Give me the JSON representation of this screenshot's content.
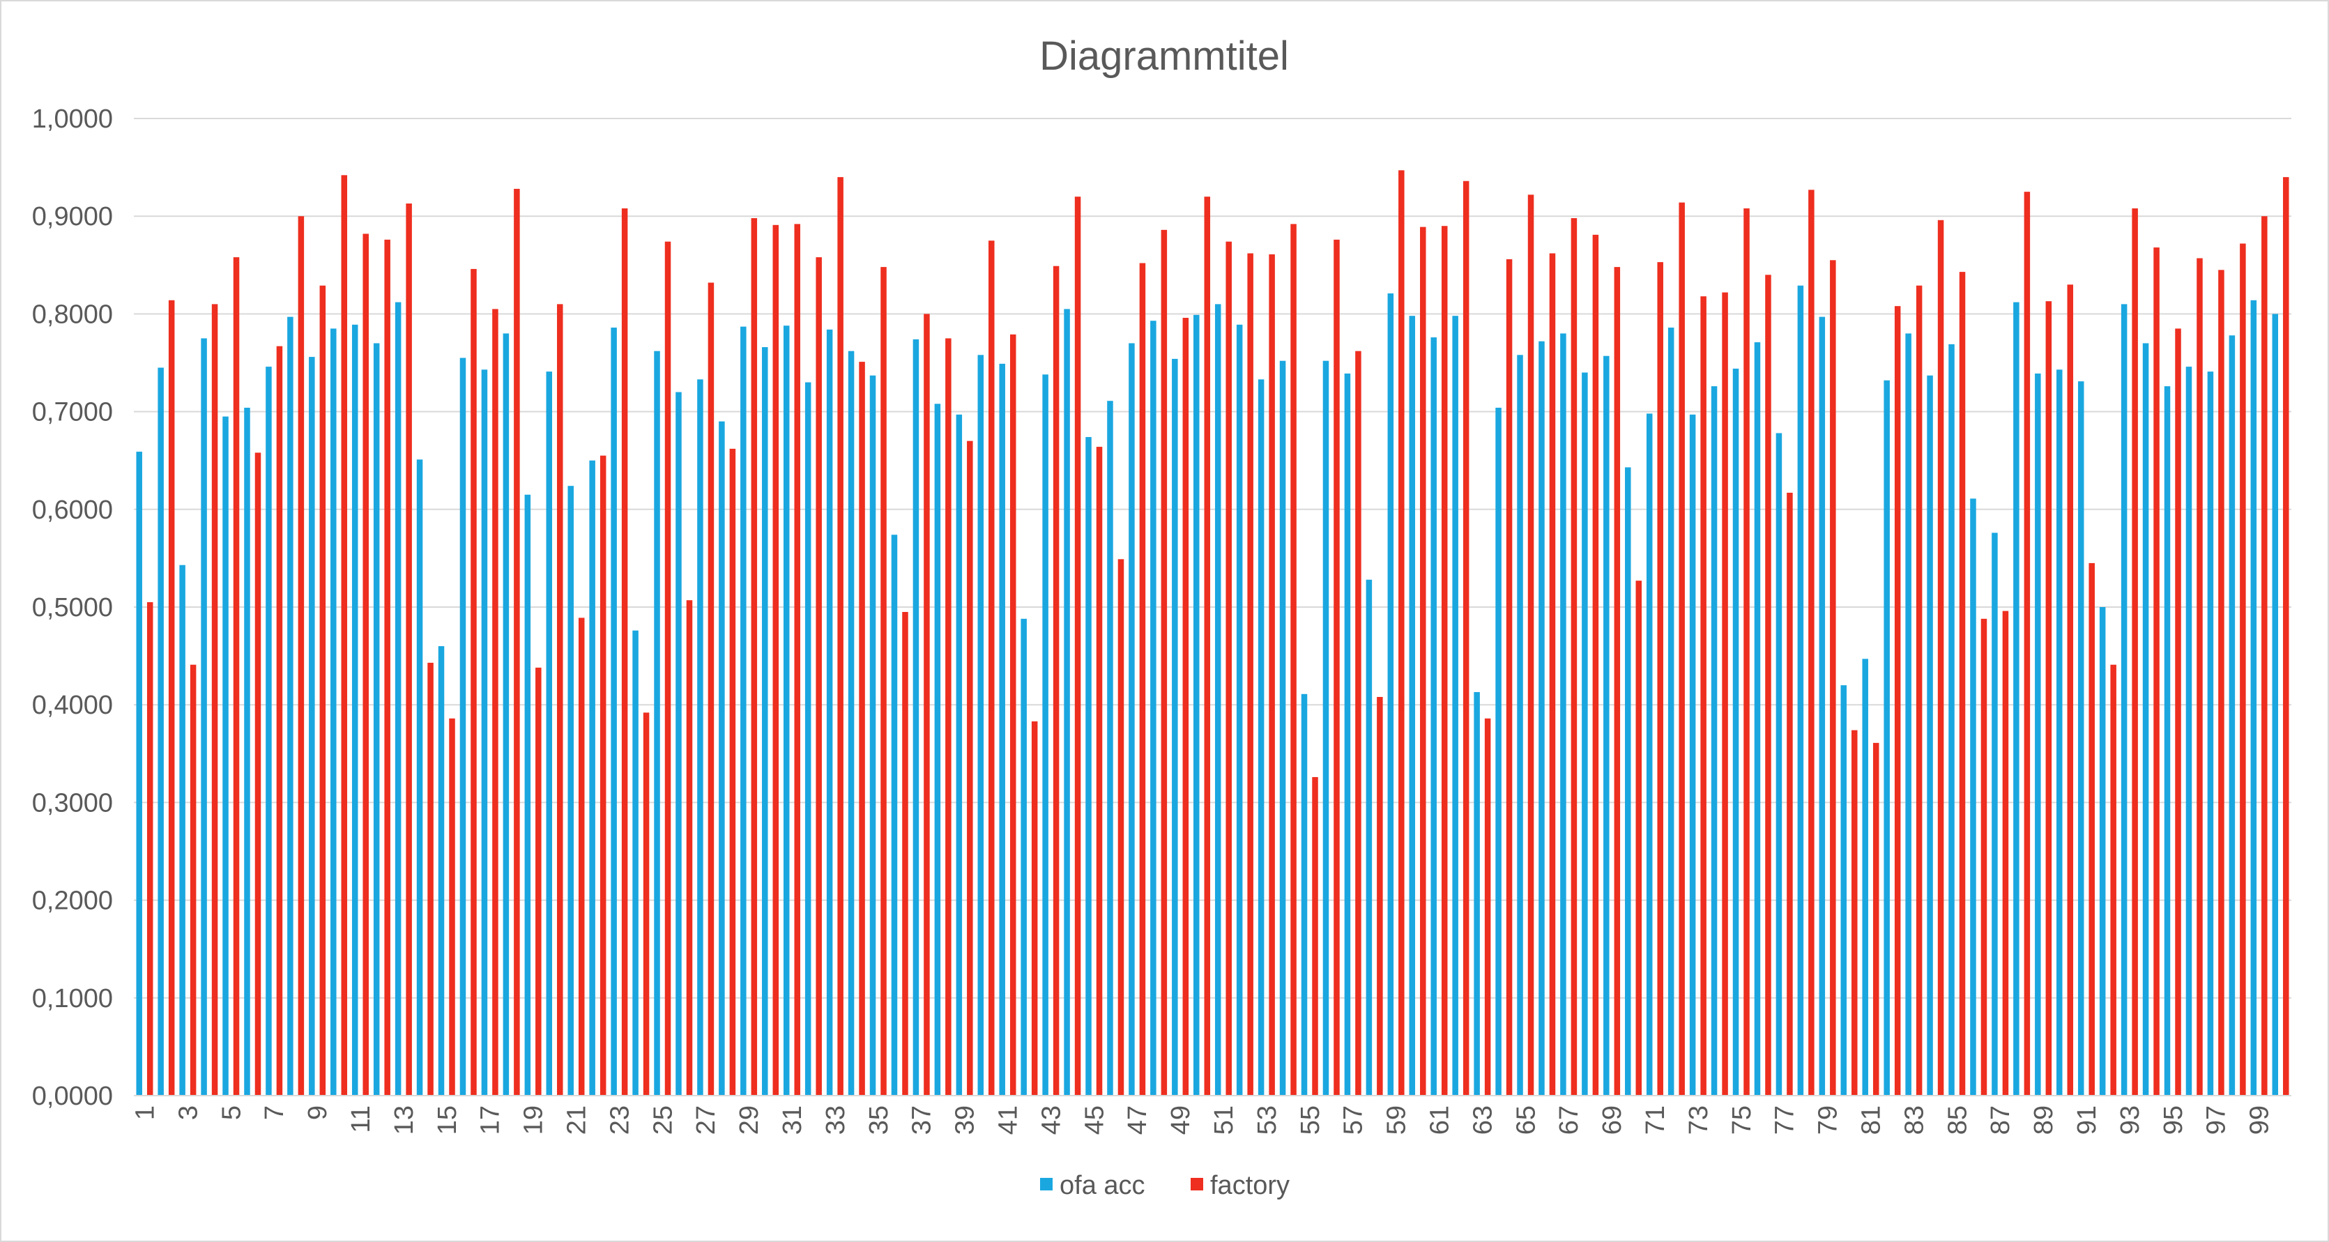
{
  "chart_data": {
    "type": "bar",
    "title": "Diagrammtitel",
    "xlabel": "",
    "ylabel": "",
    "ylim": [
      0,
      1
    ],
    "y_ticks": [
      "0,0000",
      "0,1000",
      "0,2000",
      "0,3000",
      "0,4000",
      "0,5000",
      "0,6000",
      "0,7000",
      "0,8000",
      "0,9000",
      "1,0000"
    ],
    "grid": true,
    "legend_position": "bottom",
    "categories": [
      1,
      2,
      3,
      4,
      5,
      6,
      7,
      8,
      9,
      10,
      11,
      12,
      13,
      14,
      15,
      16,
      17,
      18,
      19,
      20,
      21,
      22,
      23,
      24,
      25,
      26,
      27,
      28,
      29,
      30,
      31,
      32,
      33,
      34,
      35,
      36,
      37,
      38,
      39,
      40,
      41,
      42,
      43,
      44,
      45,
      46,
      47,
      48,
      49,
      50,
      51,
      52,
      53,
      54,
      55,
      56,
      57,
      58,
      59,
      60,
      61,
      62,
      63,
      64,
      65,
      66,
      67,
      68,
      69,
      70,
      71,
      72,
      73,
      74,
      75,
      76,
      77,
      78,
      79,
      80,
      81,
      82,
      83,
      84,
      85,
      86,
      87,
      88,
      89,
      90,
      91,
      92,
      93,
      94,
      95,
      96,
      97,
      98,
      99,
      100
    ],
    "x_tick_labels": [
      "1",
      "3",
      "5",
      "7",
      "9",
      "11",
      "13",
      "15",
      "17",
      "19",
      "21",
      "23",
      "25",
      "27",
      "29",
      "31",
      "33",
      "35",
      "37",
      "39",
      "41",
      "43",
      "45",
      "47",
      "49",
      "51",
      "53",
      "55",
      "57",
      "59",
      "61",
      "63",
      "65",
      "67",
      "69",
      "71",
      "73",
      "75",
      "77",
      "79",
      "81",
      "83",
      "85",
      "87",
      "89",
      "91",
      "93",
      "95",
      "97",
      "99"
    ],
    "series": [
      {
        "name": "ofa acc",
        "color": "#1aa7e0",
        "values": [
          0.659,
          0.745,
          0.543,
          0.775,
          0.695,
          0.704,
          0.746,
          0.797,
          0.756,
          0.785,
          0.789,
          0.77,
          0.812,
          0.651,
          0.46,
          0.755,
          0.743,
          0.78,
          0.615,
          0.741,
          0.624,
          0.65,
          0.786,
          0.476,
          0.762,
          0.72,
          0.733,
          0.69,
          0.787,
          0.766,
          0.788,
          0.73,
          0.784,
          0.762,
          0.737,
          0.574,
          0.774,
          0.708,
          0.697,
          0.758,
          0.749,
          0.488,
          0.738,
          0.805,
          0.674,
          0.711,
          0.77,
          0.793,
          0.754,
          0.799,
          0.81,
          0.789,
          0.733,
          0.752,
          0.411,
          0.752,
          0.739,
          0.528,
          0.821,
          0.798,
          0.776,
          0.798,
          0.413,
          0.704,
          0.758,
          0.772,
          0.78,
          0.74,
          0.757,
          0.643,
          0.698,
          0.786,
          0.697,
          0.726,
          0.744,
          0.771,
          0.678,
          0.829,
          0.797,
          0.42,
          0.447,
          0.732,
          0.78,
          0.737,
          0.769,
          0.611,
          0.576,
          0.812,
          0.739,
          0.743,
          0.731,
          0.5,
          0.81,
          0.77,
          0.726,
          0.746,
          0.741,
          0.778,
          0.814,
          0.8
        ]
      },
      {
        "name": "factory",
        "color": "#ee2e1f",
        "values": [
          0.505,
          0.814,
          0.441,
          0.81,
          0.858,
          0.658,
          0.767,
          0.9,
          0.829,
          0.942,
          0.882,
          0.876,
          0.913,
          0.443,
          0.386,
          0.846,
          0.805,
          0.928,
          0.438,
          0.81,
          0.489,
          0.655,
          0.908,
          0.392,
          0.874,
          0.507,
          0.832,
          0.662,
          0.898,
          0.891,
          0.892,
          0.858,
          0.94,
          0.751,
          0.848,
          0.495,
          0.8,
          0.775,
          0.67,
          0.875,
          0.779,
          0.383,
          0.849,
          0.92,
          0.664,
          0.549,
          0.852,
          0.886,
          0.796,
          0.92,
          0.874,
          0.862,
          0.861,
          0.892,
          0.326,
          0.876,
          0.762,
          0.408,
          0.947,
          0.889,
          0.89,
          0.936,
          0.386,
          0.856,
          0.922,
          0.862,
          0.898,
          0.881,
          0.848,
          0.527,
          0.853,
          0.914,
          0.818,
          0.822,
          0.908,
          0.84,
          0.617,
          0.927,
          0.855,
          0.374,
          0.361,
          0.808,
          0.829,
          0.896,
          0.843,
          0.488,
          0.496,
          0.925,
          0.813,
          0.83,
          0.545,
          0.441,
          0.908,
          0.868,
          0.785,
          0.857,
          0.845,
          0.872,
          0.9,
          0.94
        ]
      }
    ]
  }
}
